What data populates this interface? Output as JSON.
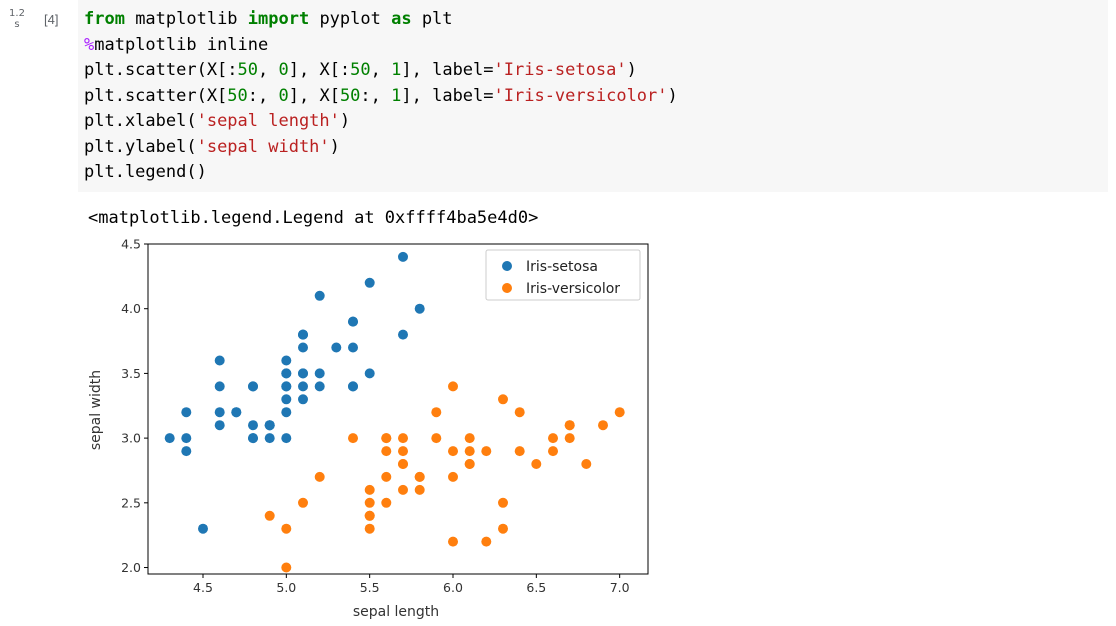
{
  "cell": {
    "exec_time_value": "1.2",
    "exec_time_unit": "s",
    "exec_count": "[4]",
    "code": {
      "l1_from": "from",
      "l1_mod": " matplotlib ",
      "l1_import": "import",
      "l1_mid": " pyplot ",
      "l1_as": "as",
      "l1_end": " plt",
      "l2_magic": "%",
      "l2_rest": "matplotlib inline",
      "l3_a": "plt.scatter(X[:",
      "l3_n1": "50",
      "l3_b": ", ",
      "l3_n2": "0",
      "l3_c": "], X[:",
      "l3_n3": "50",
      "l3_d": ", ",
      "l3_n4": "1",
      "l3_e": "], label=",
      "l3_s": "'Iris-setosa'",
      "l3_f": ")",
      "l4_a": "plt.scatter(X[",
      "l4_n1": "50",
      "l4_b": ":, ",
      "l4_n2": "0",
      "l4_c": "], X[",
      "l4_n3": "50",
      "l4_d": ":, ",
      "l4_n4": "1",
      "l4_e": "], label=",
      "l4_s": "'Iris-versicolor'",
      "l4_f": ")",
      "l5_a": "plt.xlabel(",
      "l5_s": "'sepal length'",
      "l5_f": ")",
      "l6_a": "plt.ylabel(",
      "l6_s": "'sepal width'",
      "l6_f": ")",
      "l7": "plt.legend()"
    },
    "output_text": "<matplotlib.legend.Legend at 0xffff4ba5e4d0>"
  },
  "colors": {
    "setosa": "#1f77b4",
    "versicolor": "#ff7f0e",
    "code_bg": "#f7f7f7"
  },
  "chart_data": {
    "type": "scatter",
    "xlabel": "sepal length",
    "ylabel": "sepal width",
    "xlim": [
      4.17,
      7.17
    ],
    "ylim": [
      1.95,
      4.5
    ],
    "xticks": [
      4.5,
      5.0,
      5.5,
      6.0,
      6.5,
      7.0
    ],
    "xtick_labels": [
      "4.5",
      "5.0",
      "5.5",
      "6.0",
      "6.5",
      "7.0"
    ],
    "yticks": [
      2.0,
      2.5,
      3.0,
      3.5,
      4.0,
      4.5
    ],
    "ytick_labels": [
      "2.0",
      "2.5",
      "3.0",
      "3.5",
      "4.0",
      "4.5"
    ],
    "legend_position": "top-right",
    "grid": false,
    "series": [
      {
        "name": "Iris-setosa",
        "color": "#1f77b4",
        "points": [
          [
            5.1,
            3.5
          ],
          [
            4.9,
            3.0
          ],
          [
            4.7,
            3.2
          ],
          [
            4.6,
            3.1
          ],
          [
            5.0,
            3.6
          ],
          [
            5.4,
            3.9
          ],
          [
            4.6,
            3.4
          ],
          [
            5.0,
            3.4
          ],
          [
            4.4,
            2.9
          ],
          [
            4.9,
            3.1
          ],
          [
            5.4,
            3.7
          ],
          [
            4.8,
            3.4
          ],
          [
            4.8,
            3.0
          ],
          [
            4.3,
            3.0
          ],
          [
            5.8,
            4.0
          ],
          [
            5.7,
            4.4
          ],
          [
            5.4,
            3.9
          ],
          [
            5.1,
            3.5
          ],
          [
            5.7,
            3.8
          ],
          [
            5.1,
            3.8
          ],
          [
            5.4,
            3.4
          ],
          [
            5.1,
            3.7
          ],
          [
            4.6,
            3.6
          ],
          [
            5.1,
            3.3
          ],
          [
            4.8,
            3.4
          ],
          [
            5.0,
            3.0
          ],
          [
            5.0,
            3.4
          ],
          [
            5.2,
            3.5
          ],
          [
            5.2,
            3.4
          ],
          [
            4.7,
            3.2
          ],
          [
            4.8,
            3.1
          ],
          [
            5.4,
            3.4
          ],
          [
            5.2,
            4.1
          ],
          [
            5.5,
            4.2
          ],
          [
            4.9,
            3.1
          ],
          [
            5.0,
            3.2
          ],
          [
            5.5,
            3.5
          ],
          [
            4.9,
            3.1
          ],
          [
            4.4,
            3.0
          ],
          [
            5.1,
            3.4
          ],
          [
            5.0,
            3.5
          ],
          [
            4.5,
            2.3
          ],
          [
            4.4,
            3.2
          ],
          [
            5.0,
            3.5
          ],
          [
            5.1,
            3.8
          ],
          [
            4.8,
            3.0
          ],
          [
            5.1,
            3.8
          ],
          [
            4.6,
            3.2
          ],
          [
            5.3,
            3.7
          ],
          [
            5.0,
            3.3
          ]
        ]
      },
      {
        "name": "Iris-versicolor",
        "color": "#ff7f0e",
        "points": [
          [
            7.0,
            3.2
          ],
          [
            6.4,
            3.2
          ],
          [
            6.9,
            3.1
          ],
          [
            5.5,
            2.3
          ],
          [
            6.5,
            2.8
          ],
          [
            5.7,
            2.8
          ],
          [
            6.3,
            3.3
          ],
          [
            4.9,
            2.4
          ],
          [
            6.6,
            2.9
          ],
          [
            5.2,
            2.7
          ],
          [
            5.0,
            2.0
          ],
          [
            5.9,
            3.0
          ],
          [
            6.0,
            2.2
          ],
          [
            6.1,
            2.9
          ],
          [
            5.6,
            2.9
          ],
          [
            6.7,
            3.1
          ],
          [
            5.6,
            3.0
          ],
          [
            5.8,
            2.7
          ],
          [
            6.2,
            2.2
          ],
          [
            5.6,
            2.5
          ],
          [
            5.9,
            3.2
          ],
          [
            6.1,
            2.8
          ],
          [
            6.3,
            2.5
          ],
          [
            6.1,
            2.8
          ],
          [
            6.4,
            2.9
          ],
          [
            6.6,
            3.0
          ],
          [
            6.8,
            2.8
          ],
          [
            6.7,
            3.0
          ],
          [
            6.0,
            2.9
          ],
          [
            5.7,
            2.6
          ],
          [
            5.5,
            2.4
          ],
          [
            5.5,
            2.4
          ],
          [
            5.8,
            2.7
          ],
          [
            6.0,
            2.7
          ],
          [
            5.4,
            3.0
          ],
          [
            6.0,
            3.4
          ],
          [
            6.7,
            3.1
          ],
          [
            6.3,
            2.3
          ],
          [
            5.6,
            3.0
          ],
          [
            5.5,
            2.5
          ],
          [
            5.5,
            2.6
          ],
          [
            6.1,
            3.0
          ],
          [
            5.8,
            2.6
          ],
          [
            5.0,
            2.3
          ],
          [
            5.6,
            2.7
          ],
          [
            5.7,
            3.0
          ],
          [
            5.7,
            2.9
          ],
          [
            6.2,
            2.9
          ],
          [
            5.1,
            2.5
          ],
          [
            5.7,
            2.8
          ]
        ]
      }
    ]
  }
}
